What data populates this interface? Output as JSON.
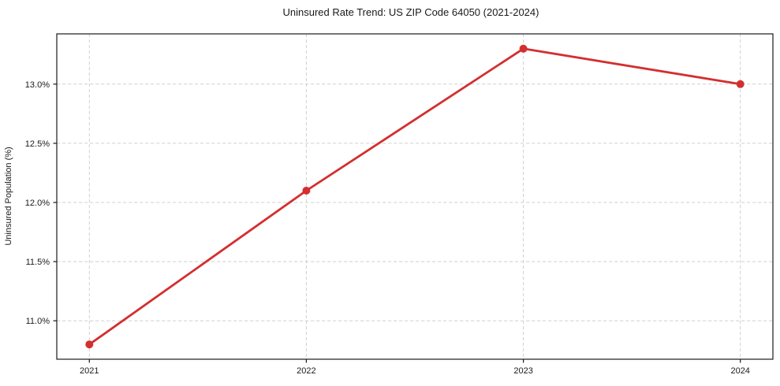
{
  "figure": {
    "background_color": "#ffffff"
  },
  "chart_data": {
    "type": "line",
    "title": "Uninsured Rate Trend: US ZIP Code 64050 (2021-2024)",
    "xlabel": "",
    "ylabel": "Uninsured Population (%)",
    "x": [
      2021,
      2022,
      2023,
      2024
    ],
    "values": [
      10.8,
      12.1,
      13.3,
      13.0
    ],
    "x_tick_labels": [
      "2021",
      "2022",
      "2023",
      "2024"
    ],
    "y_ticks": [
      11.0,
      11.5,
      12.0,
      12.5,
      13.0
    ],
    "y_tick_labels": [
      "11.0%",
      "11.5%",
      "12.0%",
      "12.5%",
      "13.0%"
    ],
    "xlim": [
      2020.85,
      2024.15
    ],
    "ylim": [
      10.675,
      13.425
    ],
    "grid": true,
    "grid_style": "dashed",
    "legend_position": "none",
    "line_color": "#d32f2f",
    "marker": "circle",
    "grid_color": "#d0d0d0",
    "axis_color": "#1a1a1a",
    "text_color": "#1a1a1a"
  }
}
